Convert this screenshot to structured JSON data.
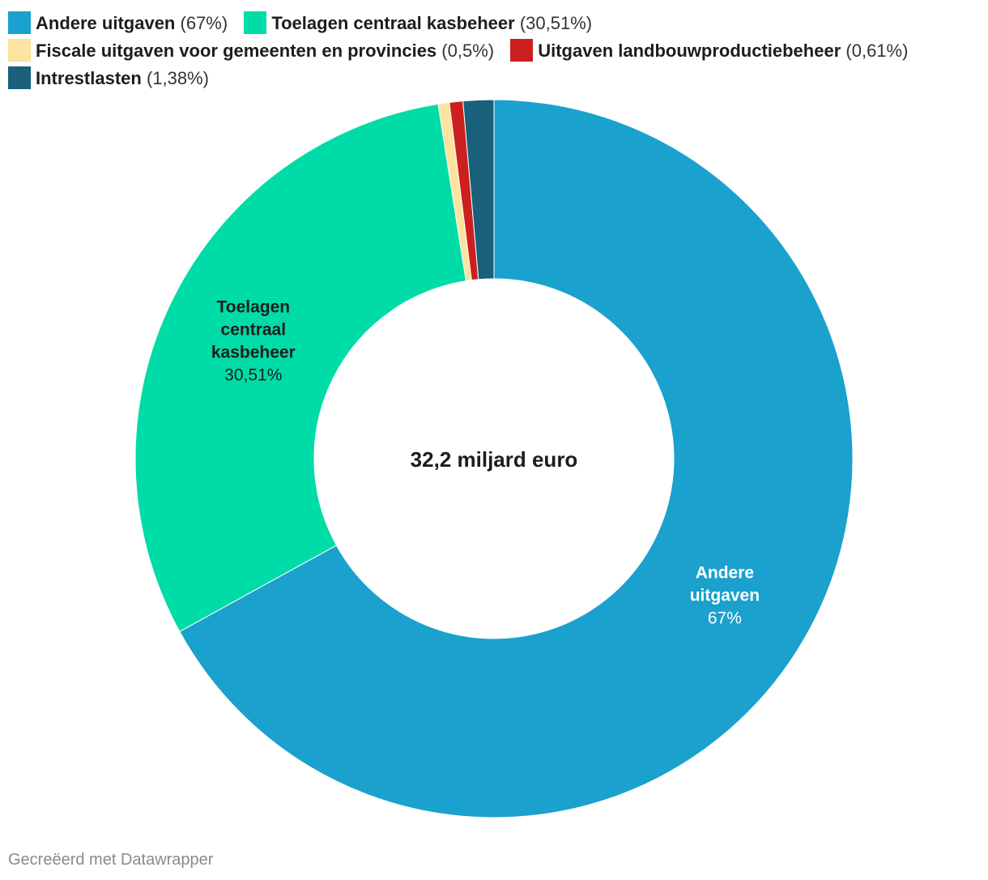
{
  "chart_data": {
    "type": "pie",
    "variant": "donut",
    "center_label": "32,2 miljard euro",
    "slices": [
      {
        "name": "Andere uitgaven",
        "value": 67,
        "value_label": "67%",
        "color": "#1aa1cd",
        "show_label": true,
        "label_color": "#ffffff"
      },
      {
        "name": "Toelagen centraal kasbeheer",
        "value": 30.51,
        "value_label": "30,51%",
        "color": "#00dca7",
        "show_label": true,
        "label_color": "#1d1d1d"
      },
      {
        "name": "Fiscale uitgaven voor gemeenten en provincies",
        "value": 0.5,
        "value_label": "0,5%",
        "color": "#fde39f",
        "show_label": false
      },
      {
        "name": "Uitgaven landbouwproductiebeheer",
        "value": 0.61,
        "value_label": "0,61%",
        "color": "#cc1f1f",
        "show_label": false
      },
      {
        "name": "Intrestlasten",
        "value": 1.38,
        "value_label": "1,38%",
        "color": "#18607c",
        "show_label": false
      }
    ],
    "legend": {
      "placement": "top",
      "items": [
        {
          "name": "Andere uitgaven",
          "pct": "(67%)"
        },
        {
          "name": "Toelagen centraal kasbeheer",
          "pct": "(30,51%)"
        },
        {
          "name": "Fiscale uitgaven voor gemeenten en provincies",
          "pct": "(0,5%)"
        },
        {
          "name": "Uitgaven landbouwproductiebeheer",
          "pct": "(0,61%)"
        },
        {
          "name": "Intrestlasten",
          "pct": "(1,38%)"
        }
      ]
    }
  },
  "footer": {
    "credit": "Gecreëerd met Datawrapper"
  }
}
